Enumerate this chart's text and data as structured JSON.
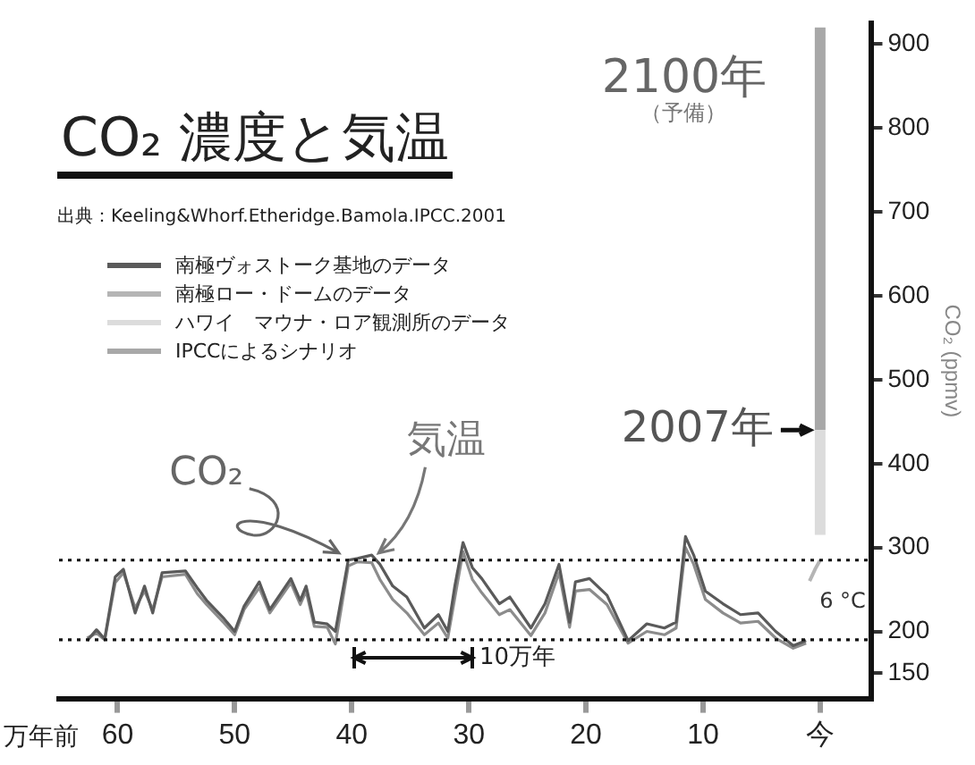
{
  "chart_data": {
    "type": "line",
    "title": "CO₂ 濃度と気温",
    "subtitle": "出典：Keeling&Whorf.Etheridge.Bamola.IPCC.2001",
    "xlabel": "万年前",
    "ylabel": "CO₂ (ppmv)",
    "xlim": [
      65,
      -4.4
    ],
    "xticks": [
      60,
      50,
      40,
      30,
      20,
      10,
      {
        "value": 0,
        "label": "今"
      }
    ],
    "ylim": [
      120,
      925
    ],
    "yticks": [
      150,
      200,
      300,
      400,
      500,
      600,
      700,
      800,
      900
    ],
    "grid": false,
    "legend": "top left",
    "marker": "none",
    "series": [
      {
        "name": "南極ヴォストーク基地のデータ",
        "color": "#5a5a5a",
        "x": [
          62.6,
          61.8,
          61.1,
          60.2,
          59.5,
          58.5,
          57.7,
          57,
          56.2,
          54.2,
          53.2,
          52.4,
          50.9,
          50,
          49.2,
          47.9,
          47,
          45.2,
          44.4,
          43.9,
          43.2,
          42.1,
          41.4,
          40.3,
          39.5,
          38.3,
          37.6,
          36.5,
          35.3,
          33.8,
          32.6,
          31.8,
          31.2,
          30.5,
          29.7,
          28.9,
          27.4,
          26.5,
          24.7,
          23.5,
          22.3,
          21.4,
          20.9,
          19.7,
          18.2,
          16.4,
          14.8,
          13.3,
          12.3,
          11.5,
          10.8,
          9.8,
          8.3,
          6.8,
          5.3,
          3.8,
          2.3,
          1.2
        ],
        "values": [
          189,
          202,
          191,
          265,
          274,
          222,
          254,
          222,
          270,
          272,
          252,
          237,
          215,
          200,
          230,
          259,
          226,
          263,
          237,
          254,
          211,
          209,
          200,
          285,
          287,
          291,
          280,
          254,
          241,
          204,
          220,
          200,
          254,
          306,
          276,
          263,
          233,
          241,
          204,
          233,
          280,
          211,
          259,
          263,
          243,
          189,
          209,
          204,
          211,
          313,
          291,
          248,
          233,
          220,
          222,
          200,
          183,
          189
        ]
      },
      {
        "color": "#8c8c8c",
        "x": [
          62.6,
          61.8,
          61.1,
          60.2,
          59.5,
          58.5,
          57.7,
          57,
          56.2,
          54.2,
          53.2,
          52.4,
          50.9,
          50,
          49.2,
          47.9,
          47,
          45.2,
          44.4,
          43.9,
          43.2,
          42.1,
          41.4,
          40.3,
          39.5,
          38.3,
          37.6,
          36.5,
          35.3,
          33.8,
          32.6,
          31.8,
          31.2,
          30.5,
          29.7,
          28.9,
          27.4,
          26.5,
          24.7,
          23.5,
          22.3,
          21.4,
          20.9,
          19.7,
          18.2,
          16.4,
          14.8,
          13.3,
          12.3,
          11.5,
          10.8,
          9.8,
          8.3,
          6.8,
          5.3,
          3.8,
          2.3,
          1.2
        ],
        "values": [
          192,
          198,
          190,
          258,
          270,
          228,
          248,
          226,
          265,
          268,
          245,
          232,
          210,
          196,
          226,
          252,
          222,
          258,
          232,
          248,
          206,
          205,
          185,
          278,
          283,
          282,
          262,
          238,
          222,
          196,
          210,
          192,
          240,
          295,
          262,
          246,
          220,
          226,
          195,
          222,
          270,
          205,
          248,
          250,
          232,
          186,
          200,
          196,
          204,
          300,
          280,
          238,
          222,
          210,
          212,
          192,
          180,
          186
        ]
      },
      {
        "name": "南極ロー・ドームのデータ",
        "color": "#b5b5b5",
        "x": [
          0.9,
          0.4,
          0
        ],
        "values": [
          260,
          275,
          285
        ]
      },
      {
        "name": "ハワイ　マウナ・ロア観測所のデータ",
        "color": "#dcdcdc",
        "x": [
          0,
          0
        ],
        "values": [
          315,
          440
        ]
      },
      {
        "name": "IPCCによるシナリオ",
        "color": "#a8a8a8",
        "x": [
          0,
          0
        ],
        "values": [
          440,
          920
        ]
      }
    ],
    "ref_lines": [
      {
        "axis": "y",
        "value": 285,
        "color": "#111111",
        "line_style": "dotted"
      },
      {
        "axis": "y",
        "value": 190,
        "color": "#111111",
        "line_style": "dotted"
      }
    ],
    "annotations": [
      {
        "text": "CO₂",
        "x": 40.5,
        "y": 285
      },
      {
        "text": "気温",
        "x": 38,
        "y": 285
      },
      "10万年",
      "6 °C",
      {
        "text": "2007年",
        "x": 0,
        "y": 440
      },
      {
        "text": "2100年",
        "x": 0,
        "y": 900
      },
      "（予備）"
    ]
  }
}
